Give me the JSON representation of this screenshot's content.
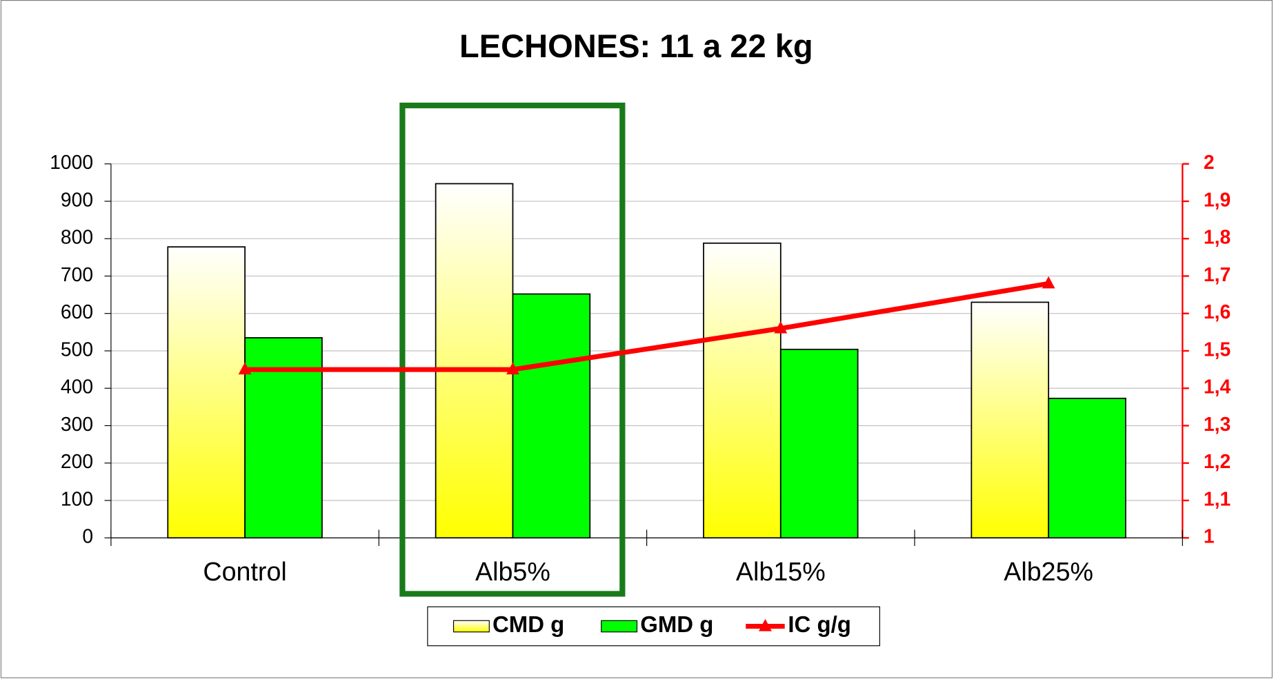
{
  "chart_data": {
    "type": "bar_line",
    "title": "LECHONES: 11 a 22 kg",
    "categories": [
      "Control",
      "Alb5%",
      "Alb15%",
      "Alb25%"
    ],
    "series": [
      {
        "name": "CMD g",
        "color": "#ffff00",
        "values": [
          778,
          947,
          788,
          630
        ]
      },
      {
        "name": "GMD g",
        "color": "#00ff00",
        "values": [
          535,
          652,
          504,
          373
        ]
      },
      {
        "name": "IC g/g",
        "color": "#ff0000",
        "axis": "y2",
        "values": [
          1.45,
          1.45,
          1.56,
          1.68
        ]
      }
    ],
    "ylim": [
      0,
      1000
    ],
    "yticks": [
      0,
      100,
      200,
      300,
      400,
      500,
      600,
      700,
      800,
      900,
      1000
    ],
    "y2lim": [
      1,
      2
    ],
    "y2ticks": [
      1,
      {
        "value": 1.1,
        "label": "1,1"
      },
      {
        "value": 1.2,
        "label": "1,2"
      },
      {
        "value": 1.3,
        "label": "1,3"
      },
      {
        "value": 1.4,
        "label": "1,4"
      },
      {
        "value": 1.5,
        "label": "1,5"
      },
      {
        "value": 1.6,
        "label": "1,6"
      },
      {
        "value": 1.7,
        "label": "1,7"
      },
      {
        "value": 1.8,
        "label": "1,8"
      },
      {
        "value": 1.9,
        "label": "1,9"
      },
      2
    ],
    "grid": true,
    "legend": "bottom"
  }
}
